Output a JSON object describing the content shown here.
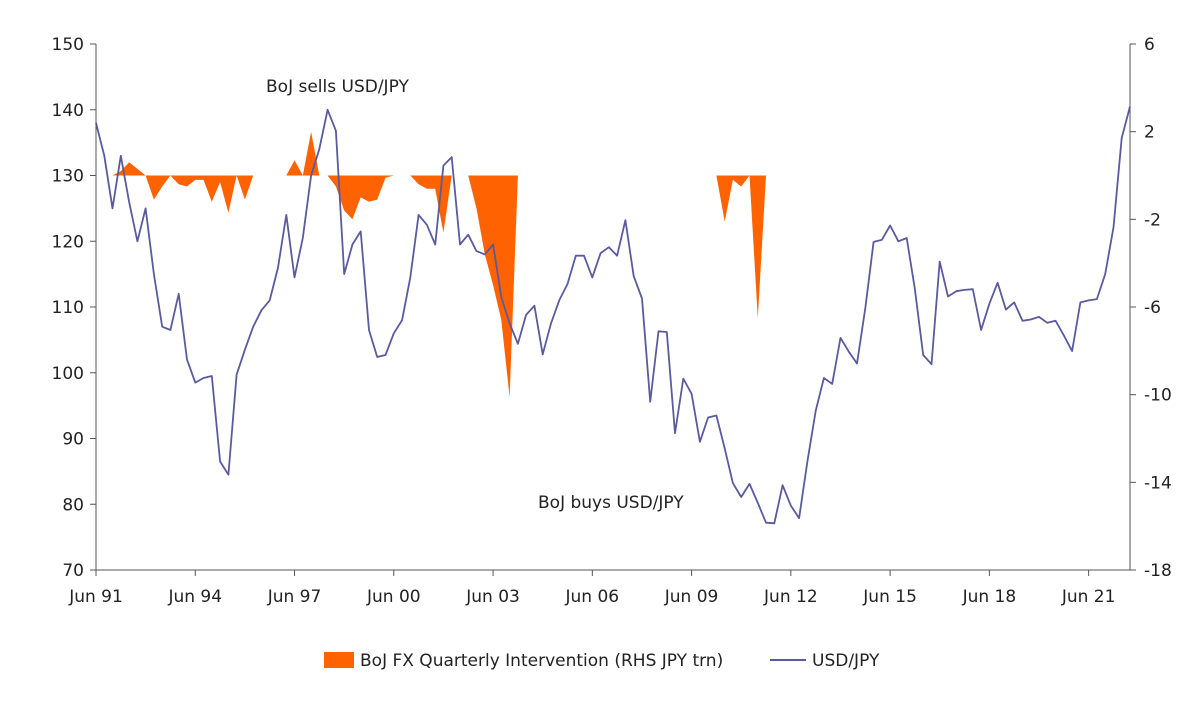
{
  "chart_data": {
    "type": "line+area",
    "x_ticks": [
      "Jun 91",
      "Jun 94",
      "Jun 97",
      "Jun 00",
      "Jun 03",
      "Jun 06",
      "Jun 09",
      "Jun 12",
      "Jun 15",
      "Jun 18",
      "Jun 21"
    ],
    "x_range": [
      1991.5,
      2022.75
    ],
    "y_left": {
      "ticks": [
        150,
        140,
        130,
        120,
        110,
        100,
        90,
        80,
        70
      ],
      "range": [
        70,
        150
      ]
    },
    "y_right": {
      "ticks": [
        6,
        2,
        -2,
        -6,
        -10,
        -14,
        -18
      ],
      "range": [
        -18,
        6
      ]
    },
    "annotations": [
      {
        "id": "sells",
        "text": "BoJ sells USD/JPY"
      },
      {
        "id": "buys",
        "text": "BoJ buys USD/JPY"
      }
    ],
    "legend_placement": "bottom-center",
    "series": [
      {
        "name": "BoJ FX Quarterly Intervention (RHS JPY trn)",
        "axis": "right",
        "kind": "area",
        "color": "#ff6200",
        "x": [
          1991.5,
          1991.75,
          1992.0,
          1992.25,
          1992.5,
          1992.75,
          1993.0,
          1993.25,
          1993.5,
          1993.75,
          1994.0,
          1994.25,
          1994.5,
          1994.75,
          1995.0,
          1995.25,
          1995.5,
          1995.75,
          1996.0,
          1996.25,
          1996.5,
          1996.75,
          1997.0,
          1997.25,
          1997.5,
          1997.75,
          1998.0,
          1998.25,
          1998.5,
          1998.75,
          1999.0,
          1999.25,
          1999.5,
          1999.75,
          2000.0,
          2000.25,
          2000.5,
          2000.75,
          2001.0,
          2001.25,
          2001.5,
          2001.75,
          2002.0,
          2002.25,
          2002.5,
          2002.75,
          2003.0,
          2003.25,
          2003.5,
          2003.75,
          2004.0,
          2004.25,
          2004.5,
          2010.25,
          2010.5,
          2010.75,
          2011.0,
          2011.25,
          2011.5,
          2011.75,
          2012.0
        ],
        "values": [
          0.0,
          0.0,
          0.0,
          0.2,
          0.6,
          0.3,
          0.0,
          -1.1,
          -0.5,
          0.0,
          -0.4,
          -0.5,
          -0.2,
          -0.2,
          -1.2,
          -0.3,
          -1.7,
          0.0,
          -1.1,
          0.0,
          0.0,
          0.0,
          0.0,
          0.0,
          0.7,
          0.0,
          2.0,
          0.0,
          0.0,
          -0.5,
          -1.6,
          -2.0,
          -1.0,
          -1.2,
          -1.1,
          -0.1,
          0.0,
          0.0,
          0.0,
          -0.4,
          -0.6,
          -0.6,
          -2.6,
          0.0,
          0.0,
          0.0,
          -1.5,
          -3.6,
          -5.0,
          -6.6,
          -10.1,
          0.0,
          0.0,
          0.0,
          -2.1,
          -0.2,
          -0.5,
          0.0,
          -6.5,
          0.0,
          0.0
        ]
      },
      {
        "name": "USD/JPY",
        "axis": "left",
        "kind": "line",
        "color": "#5a5a9e",
        "x": [
          1991.5,
          1991.75,
          1992.0,
          1992.25,
          1992.5,
          1992.75,
          1993.0,
          1993.25,
          1993.5,
          1993.75,
          1994.0,
          1994.25,
          1994.5,
          1994.75,
          1995.0,
          1995.25,
          1995.5,
          1995.75,
          1996.0,
          1996.25,
          1996.5,
          1996.75,
          1997.0,
          1997.25,
          1997.5,
          1997.75,
          1998.0,
          1998.25,
          1998.5,
          1998.75,
          1999.0,
          1999.25,
          1999.5,
          1999.75,
          2000.0,
          2000.25,
          2000.5,
          2000.75,
          2001.0,
          2001.25,
          2001.5,
          2001.75,
          2002.0,
          2002.25,
          2002.5,
          2002.75,
          2003.0,
          2003.25,
          2003.5,
          2003.75,
          2004.0,
          2004.25,
          2004.5,
          2004.75,
          2005.0,
          2005.25,
          2005.5,
          2005.75,
          2006.0,
          2006.25,
          2006.5,
          2006.75,
          2007.0,
          2007.25,
          2007.5,
          2007.75,
          2008.0,
          2008.25,
          2008.5,
          2008.75,
          2009.0,
          2009.25,
          2009.5,
          2009.75,
          2010.0,
          2010.25,
          2010.5,
          2010.75,
          2011.0,
          2011.25,
          2011.5,
          2011.75,
          2012.0,
          2012.25,
          2012.5,
          2012.75,
          2013.0,
          2013.25,
          2013.5,
          2013.75,
          2014.0,
          2014.25,
          2014.5,
          2014.75,
          2015.0,
          2015.25,
          2015.5,
          2015.75,
          2016.0,
          2016.25,
          2016.5,
          2016.75,
          2017.0,
          2017.25,
          2017.5,
          2017.75,
          2018.0,
          2018.25,
          2018.5,
          2018.75,
          2019.0,
          2019.25,
          2019.5,
          2019.75,
          2020.0,
          2020.25,
          2020.5,
          2020.75,
          2021.0,
          2021.25,
          2021.5,
          2021.75,
          2022.0,
          2022.25,
          2022.5,
          2022.75
        ],
        "values": [
          138,
          133,
          125,
          133,
          126,
          120,
          125,
          115,
          107,
          106.5,
          112,
          102,
          98.5,
          99.2,
          99.5,
          86.5,
          84.5,
          99.7,
          103.5,
          107,
          109.5,
          111,
          116,
          124,
          114.5,
          120.5,
          130,
          134,
          140,
          136.8,
          115,
          119.5,
          121.5,
          106.5,
          102.4,
          102.7,
          106,
          108,
          114.5,
          124,
          122.5,
          119.5,
          131.5,
          132.8,
          119.5,
          121,
          118.5,
          118,
          119.5,
          111.5,
          107.5,
          104.4,
          108.8,
          110.2,
          102.8,
          107.5,
          111,
          113.5,
          117.8,
          117.8,
          114.5,
          118.2,
          119.1,
          117.8,
          123.2,
          114.7,
          111.3,
          95.6,
          106.3,
          106.2,
          90.8,
          99.1,
          96.8,
          89.5,
          93.2,
          93.5,
          88.5,
          83.2,
          81.1,
          83.1,
          80.2,
          77.2,
          77.1,
          82.9,
          79.8,
          77.9,
          86.5,
          94.2,
          99.2,
          98.3,
          105.3,
          103.2,
          101.4,
          109.8,
          119.9,
          120.2,
          122.4,
          120.0,
          120.5,
          112.7,
          102.7,
          101.3,
          116.9,
          111.6,
          112.4,
          112.6,
          112.7,
          106.5,
          110.5,
          113.7,
          109.6,
          110.7,
          107.9,
          108.1,
          108.5,
          107.6,
          107.9,
          105.7,
          103.3,
          110.7,
          111.0,
          111.2,
          115.0,
          122.1,
          135.7,
          140.5
        ]
      }
    ]
  }
}
